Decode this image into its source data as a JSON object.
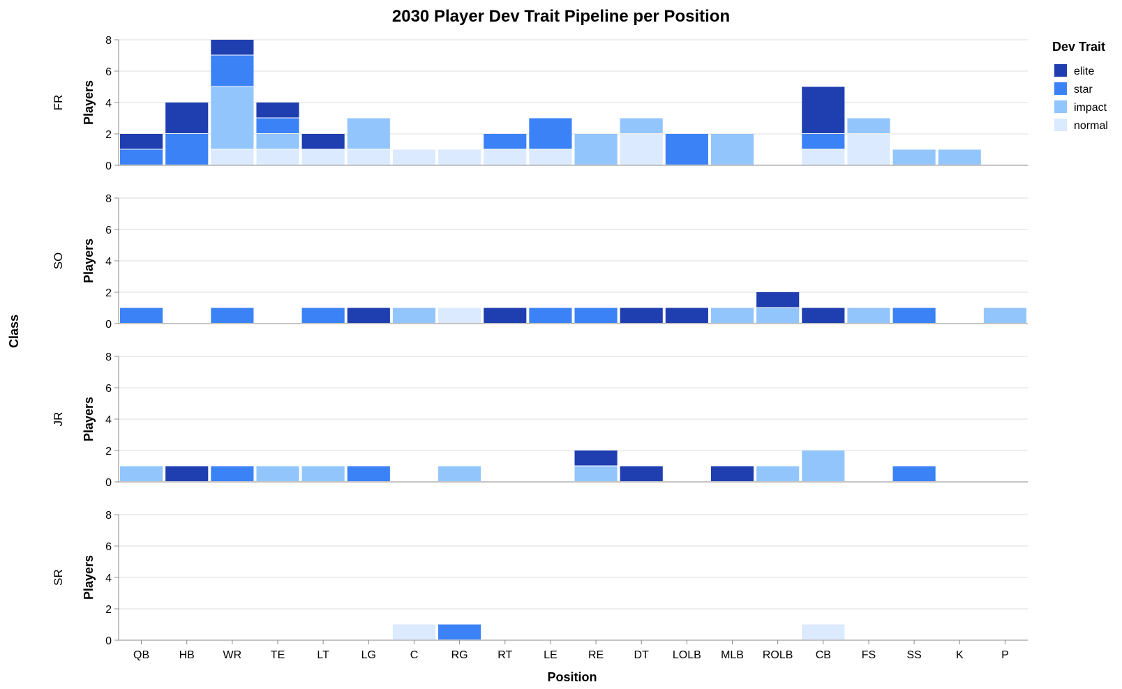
{
  "chart_data": {
    "type": "bar",
    "stacked": true,
    "title": "2030 Player Dev Trait Pipeline per Position",
    "xlabel": "Position",
    "ylabel": "Players",
    "row_title": "Class",
    "legend_title": "Dev Trait",
    "legend_position": "top-right",
    "ylim": [
      0,
      8
    ],
    "yticks": [
      0,
      2,
      4,
      6,
      8
    ],
    "grid": true,
    "categories": [
      "QB",
      "HB",
      "WR",
      "TE",
      "LT",
      "LG",
      "C",
      "RG",
      "RT",
      "LE",
      "RE",
      "DT",
      "LOLB",
      "MLB",
      "ROLB",
      "CB",
      "FS",
      "SS",
      "K",
      "P"
    ],
    "traits": [
      {
        "name": "elite",
        "color": "#1f3fb0"
      },
      {
        "name": "star",
        "color": "#3b82f6"
      },
      {
        "name": "impact",
        "color": "#93c5fd"
      },
      {
        "name": "normal",
        "color": "#dbeafe"
      }
    ],
    "facets": [
      {
        "row": "FR",
        "series": {
          "normal": [
            0,
            0,
            1,
            1,
            1,
            1,
            1,
            1,
            1,
            1,
            0,
            2,
            0,
            0,
            0,
            1,
            2,
            0,
            0,
            0
          ],
          "impact": [
            0,
            0,
            4,
            1,
            0,
            2,
            0,
            0,
            0,
            0,
            2,
            1,
            0,
            2,
            0,
            0,
            1,
            1,
            1,
            0
          ],
          "star": [
            1,
            2,
            2,
            1,
            0,
            0,
            0,
            0,
            1,
            2,
            0,
            0,
            2,
            0,
            0,
            1,
            0,
            0,
            0,
            0
          ],
          "elite": [
            1,
            2,
            1,
            1,
            1,
            0,
            0,
            0,
            0,
            0,
            0,
            0,
            0,
            0,
            0,
            3,
            0,
            0,
            0,
            0
          ]
        }
      },
      {
        "row": "SO",
        "series": {
          "normal": [
            0,
            0,
            0,
            0,
            0,
            0,
            0,
            1,
            0,
            0,
            0,
            0,
            0,
            0,
            0,
            0,
            0,
            0,
            0,
            0
          ],
          "impact": [
            0,
            0,
            0,
            0,
            0,
            0,
            1,
            0,
            0,
            0,
            0,
            0,
            0,
            1,
            1,
            0,
            1,
            0,
            0,
            1
          ],
          "star": [
            1,
            0,
            1,
            0,
            1,
            0,
            0,
            0,
            0,
            1,
            1,
            0,
            0,
            0,
            0,
            0,
            0,
            1,
            0,
            0
          ],
          "elite": [
            0,
            0,
            0,
            0,
            0,
            1,
            0,
            0,
            1,
            0,
            0,
            1,
            1,
            0,
            1,
            1,
            0,
            0,
            0,
            0
          ]
        }
      },
      {
        "row": "JR",
        "series": {
          "normal": [
            0,
            0,
            0,
            0,
            0,
            0,
            0,
            0,
            0,
            0,
            0,
            0,
            0,
            0,
            0,
            0,
            0,
            0,
            0,
            0
          ],
          "impact": [
            1,
            0,
            0,
            1,
            1,
            0,
            0,
            1,
            0,
            0,
            1,
            0,
            0,
            0,
            1,
            2,
            0,
            0,
            0,
            0
          ],
          "star": [
            0,
            0,
            1,
            0,
            0,
            1,
            0,
            0,
            0,
            0,
            0,
            0,
            0,
            0,
            0,
            0,
            0,
            1,
            0,
            0
          ],
          "elite": [
            0,
            1,
            0,
            0,
            0,
            0,
            0,
            0,
            0,
            0,
            1,
            1,
            0,
            1,
            0,
            0,
            0,
            0,
            0,
            0
          ]
        }
      },
      {
        "row": "SR",
        "series": {
          "normal": [
            0,
            0,
            0,
            0,
            0,
            0,
            1,
            0,
            0,
            0,
            0,
            0,
            0,
            0,
            0,
            1,
            0,
            0,
            0,
            0
          ],
          "impact": [
            0,
            0,
            0,
            0,
            0,
            0,
            0,
            0,
            0,
            0,
            0,
            0,
            0,
            0,
            0,
            0,
            0,
            0,
            0,
            0
          ],
          "star": [
            0,
            0,
            0,
            0,
            0,
            0,
            0,
            1,
            0,
            0,
            0,
            0,
            0,
            0,
            0,
            0,
            0,
            0,
            0,
            0
          ],
          "elite": [
            0,
            0,
            0,
            0,
            0,
            0,
            0,
            0,
            0,
            0,
            0,
            0,
            0,
            0,
            0,
            0,
            0,
            0,
            0,
            0
          ]
        }
      }
    ]
  }
}
